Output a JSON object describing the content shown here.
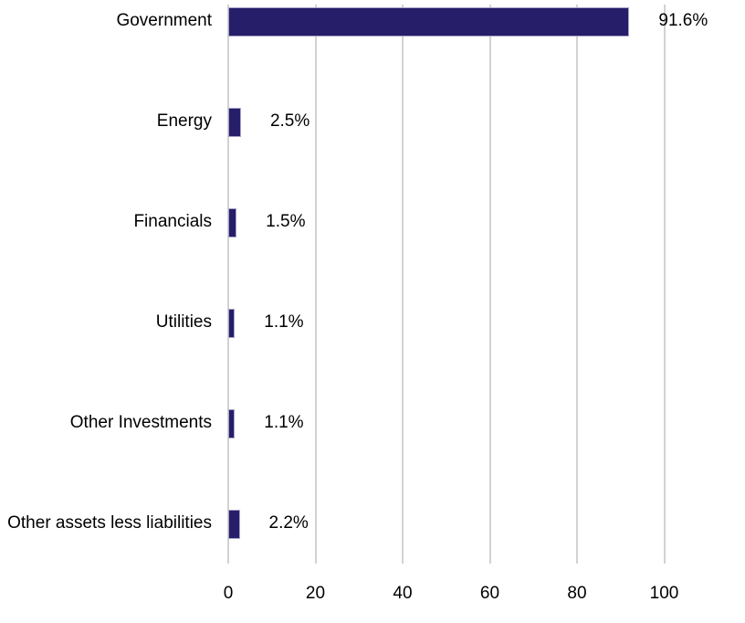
{
  "chart_data": {
    "type": "bar",
    "orientation": "horizontal",
    "title": "",
    "categories": [
      "Government",
      "Energy",
      "Financials",
      "Utilities",
      "Other Investments",
      "Other assets less liabilities"
    ],
    "values": [
      91.6,
      2.5,
      1.5,
      1.1,
      1.1,
      2.2
    ],
    "value_labels": [
      "91.6%",
      "2.5%",
      "1.5%",
      "1.1%",
      "1.1%",
      "2.2%"
    ],
    "x_ticks": [
      0,
      20,
      40,
      60,
      80,
      100
    ],
    "x_tick_labels": [
      "0",
      "20",
      "40",
      "60",
      "80",
      "100"
    ],
    "xlim": [
      0,
      100
    ],
    "grid": true,
    "legend": false,
    "colors": {
      "bar_fill": "#271e69",
      "bar_border": "#a8a5c9",
      "gridline": "#d2d2d2",
      "text": "#000000",
      "background": "#ffffff"
    }
  }
}
